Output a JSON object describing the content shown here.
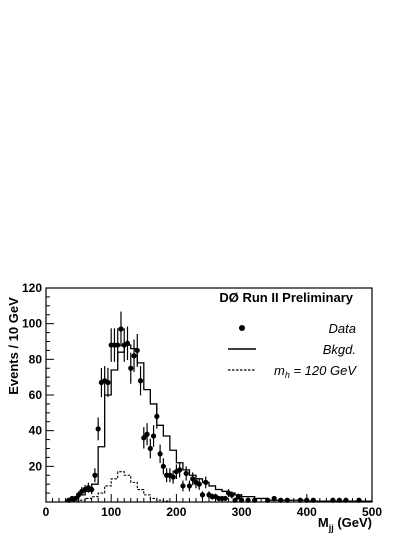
{
  "chart_data": {
    "type": "histogram",
    "title": "DØ Run II Preliminary",
    "xlabel": {
      "main": "M",
      "sub": "jj",
      "unit": " (GeV)"
    },
    "ylabel": "Events / 10 GeV",
    "xlim": [
      0,
      500
    ],
    "ylim": [
      0,
      120
    ],
    "xticks": [
      "0",
      "100",
      "200",
      "300",
      "400",
      "500"
    ],
    "yticks": [
      "20",
      "40",
      "60",
      "80",
      "100",
      "120"
    ],
    "grid": false,
    "legend_position": "top-right",
    "legend": {
      "data": "Data",
      "bkgd": "Bkgd.",
      "signal_prefix": "m",
      "signal_sub": "h",
      "signal_suffix": " = 120 GeV"
    },
    "data": {
      "x": [
        35,
        40,
        45,
        50,
        55,
        60,
        65,
        70,
        75,
        80,
        85,
        90,
        95,
        100,
        105,
        110,
        115,
        120,
        125,
        130,
        135,
        140,
        145,
        150,
        155,
        160,
        165,
        170,
        175,
        180,
        185,
        190,
        195,
        200,
        205,
        210,
        215,
        220,
        225,
        230,
        235,
        240,
        245,
        250,
        255,
        260,
        265,
        270,
        275,
        280,
        285,
        290,
        295,
        300,
        310,
        320,
        340,
        350,
        360,
        370,
        390,
        400,
        410,
        440,
        450,
        460,
        480
      ],
      "y": [
        1,
        2,
        2,
        4,
        6,
        7,
        8,
        7,
        15,
        41,
        67,
        68,
        67,
        88,
        88,
        88,
        97,
        88,
        89,
        75,
        82,
        85,
        68,
        36,
        38,
        30,
        37,
        48,
        27,
        20,
        15,
        15,
        14,
        17,
        18,
        9,
        16,
        9,
        13,
        11,
        10,
        4,
        11,
        4,
        3,
        3,
        2,
        2,
        2,
        5,
        4,
        1,
        3,
        1,
        1,
        1,
        1,
        2,
        1,
        1,
        1,
        1,
        1,
        1,
        1,
        1,
        1
      ],
      "err": [
        1,
        1.4,
        1.4,
        2,
        2.4,
        2.6,
        2.8,
        2.6,
        3.9,
        6.4,
        8.2,
        8.2,
        8.2,
        9.4,
        9.4,
        9.4,
        9.8,
        9.4,
        9.4,
        8.7,
        9.1,
        9.2,
        8.2,
        6,
        6.2,
        5.5,
        6.1,
        6.9,
        5.2,
        4.5,
        3.9,
        3.9,
        3.7,
        4.1,
        4.2,
        3,
        4,
        3,
        3.6,
        3.3,
        3.2,
        2,
        3.3,
        2,
        1.7,
        1.7,
        1.4,
        1.4,
        1.4,
        2.2,
        2,
        1,
        1.7,
        1,
        1,
        1,
        1,
        1.4,
        1,
        1,
        1,
        1,
        1,
        1,
        1,
        1,
        1
      ]
    },
    "background": {
      "bin_edges": [
        30,
        40,
        50,
        60,
        70,
        80,
        90,
        100,
        110,
        120,
        130,
        140,
        150,
        160,
        170,
        180,
        190,
        200,
        210,
        220,
        230,
        240,
        250,
        260,
        270,
        280,
        290,
        300,
        310,
        320,
        340,
        360,
        380,
        400,
        420,
        450,
        500
      ],
      "values": [
        1,
        2,
        4,
        6,
        10,
        31,
        60,
        74,
        84,
        88,
        86,
        78,
        63,
        55,
        43,
        37,
        29,
        22,
        18,
        15,
        13,
        11,
        9,
        7,
        6,
        5,
        4,
        3,
        3,
        2,
        1,
        1,
        1,
        0.5,
        0.5,
        0.5
      ]
    },
    "signal": {
      "bin_edges": [
        30,
        40,
        50,
        60,
        70,
        80,
        90,
        100,
        110,
        120,
        130,
        140,
        150,
        160,
        170,
        180,
        190,
        200,
        210,
        220,
        230,
        240,
        250,
        260,
        270,
        280,
        290,
        300,
        310,
        320,
        340,
        360,
        380,
        400,
        420,
        450,
        500
      ],
      "values": [
        0,
        0.5,
        1,
        2,
        3,
        5,
        9,
        13,
        17,
        15,
        11,
        7,
        4,
        2,
        1,
        0.5,
        0,
        0,
        0,
        0,
        0,
        0,
        0,
        0,
        0,
        0,
        0,
        0,
        0,
        0,
        0,
        0,
        0,
        0,
        0,
        0
      ]
    }
  }
}
